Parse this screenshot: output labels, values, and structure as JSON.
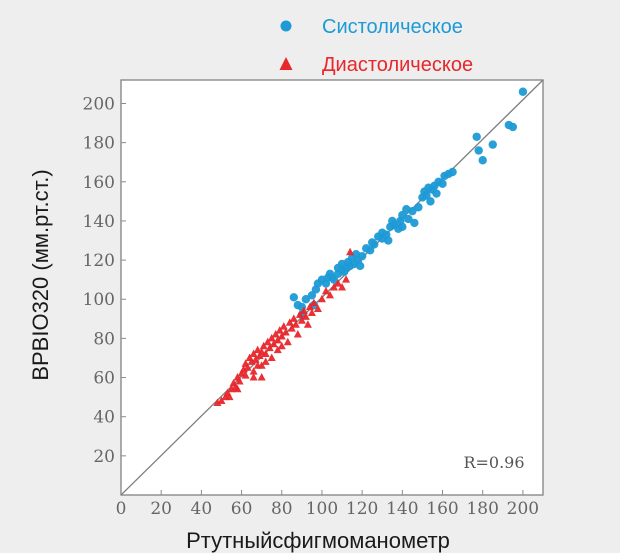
{
  "chart_data": {
    "type": "scatter",
    "xlabel": "Ртутныйсфигмоманометр",
    "ylabel": "BPBIO320 (мм.рт.ст.)",
    "xlim": [
      0,
      210
    ],
    "ylim": [
      0,
      212
    ],
    "x_ticks": [
      0,
      20,
      40,
      60,
      80,
      100,
      120,
      140,
      160,
      180,
      200
    ],
    "y_ticks": [
      20,
      40,
      60,
      80,
      100,
      120,
      140,
      160,
      180,
      200
    ],
    "annotation": "R=0.96",
    "legend": "top-right",
    "reference_line": {
      "from": [
        0,
        0
      ],
      "to": [
        210,
        212
      ]
    },
    "series": [
      {
        "name": "Систолическое",
        "marker": "circle",
        "color": "#1e9ad6",
        "points": [
          [
            86,
            101
          ],
          [
            88,
            97
          ],
          [
            90,
            96
          ],
          [
            90,
            92
          ],
          [
            92,
            100
          ],
          [
            95,
            102
          ],
          [
            97,
            105
          ],
          [
            98,
            108
          ],
          [
            100,
            110
          ],
          [
            102,
            108
          ],
          [
            103,
            111
          ],
          [
            104,
            113
          ],
          [
            105,
            111
          ],
          [
            106,
            110
          ],
          [
            108,
            113
          ],
          [
            110,
            115
          ],
          [
            110,
            118
          ],
          [
            111,
            114
          ],
          [
            112,
            116
          ],
          [
            113,
            119
          ],
          [
            114,
            117
          ],
          [
            115,
            121
          ],
          [
            116,
            118
          ],
          [
            117,
            123
          ],
          [
            118,
            120
          ],
          [
            119,
            117
          ],
          [
            120,
            122
          ],
          [
            122,
            126
          ],
          [
            124,
            125
          ],
          [
            125,
            129
          ],
          [
            126,
            128
          ],
          [
            128,
            132
          ],
          [
            130,
            131
          ],
          [
            130,
            134
          ],
          [
            132,
            133
          ],
          [
            133,
            130
          ],
          [
            134,
            137
          ],
          [
            135,
            140
          ],
          [
            136,
            138
          ],
          [
            138,
            136
          ],
          [
            139,
            140
          ],
          [
            140,
            143
          ],
          [
            140,
            137
          ],
          [
            142,
            146
          ],
          [
            143,
            141
          ],
          [
            145,
            145
          ],
          [
            146,
            139
          ],
          [
            148,
            147
          ],
          [
            150,
            152
          ],
          [
            151,
            155
          ],
          [
            152,
            153
          ],
          [
            153,
            157
          ],
          [
            154,
            150
          ],
          [
            155,
            156
          ],
          [
            156,
            158
          ],
          [
            157,
            154
          ],
          [
            158,
            160
          ],
          [
            160,
            159
          ],
          [
            161,
            163
          ],
          [
            163,
            164
          ],
          [
            165,
            165
          ],
          [
            177,
            183
          ],
          [
            178,
            176
          ],
          [
            180,
            171
          ],
          [
            185,
            179
          ],
          [
            193,
            189
          ],
          [
            195,
            188
          ],
          [
            200,
            206
          ],
          [
            96,
            97
          ],
          [
            108,
            116
          ]
        ]
      },
      {
        "name": "Диастолическое",
        "marker": "triangle",
        "color": "#e8262b",
        "points": [
          [
            48,
            47
          ],
          [
            50,
            48
          ],
          [
            52,
            50
          ],
          [
            53,
            52
          ],
          [
            55,
            54
          ],
          [
            56,
            57
          ],
          [
            57,
            55
          ],
          [
            58,
            60
          ],
          [
            59,
            58
          ],
          [
            60,
            62
          ],
          [
            61,
            64
          ],
          [
            62,
            61
          ],
          [
            62,
            67
          ],
          [
            63,
            65
          ],
          [
            64,
            70
          ],
          [
            65,
            68
          ],
          [
            66,
            72
          ],
          [
            66,
            63
          ],
          [
            67,
            69
          ],
          [
            68,
            74
          ],
          [
            69,
            71
          ],
          [
            70,
            73
          ],
          [
            70,
            60
          ],
          [
            71,
            76
          ],
          [
            72,
            72
          ],
          [
            73,
            78
          ],
          [
            74,
            75
          ],
          [
            75,
            80
          ],
          [
            76,
            77
          ],
          [
            77,
            82
          ],
          [
            78,
            79
          ],
          [
            78,
            74
          ],
          [
            79,
            84
          ],
          [
            80,
            81
          ],
          [
            80,
            76
          ],
          [
            81,
            86
          ],
          [
            82,
            83
          ],
          [
            83,
            78
          ],
          [
            84,
            88
          ],
          [
            85,
            85
          ],
          [
            86,
            90
          ],
          [
            87,
            87
          ],
          [
            88,
            82
          ],
          [
            89,
            92
          ],
          [
            90,
            89
          ],
          [
            91,
            94
          ],
          [
            92,
            91
          ],
          [
            93,
            87
          ],
          [
            94,
            96
          ],
          [
            95,
            93
          ],
          [
            96,
            98
          ],
          [
            98,
            95
          ],
          [
            100,
            100
          ],
          [
            102,
            104
          ],
          [
            104,
            102
          ],
          [
            106,
            106
          ],
          [
            108,
            108
          ],
          [
            110,
            106
          ],
          [
            112,
            110
          ],
          [
            114,
            124
          ],
          [
            68,
            66
          ],
          [
            58,
            54
          ],
          [
            54,
            50
          ],
          [
            66,
            60
          ],
          [
            72,
            68
          ],
          [
            75,
            70
          ],
          [
            70,
            66
          ]
        ]
      }
    ]
  }
}
